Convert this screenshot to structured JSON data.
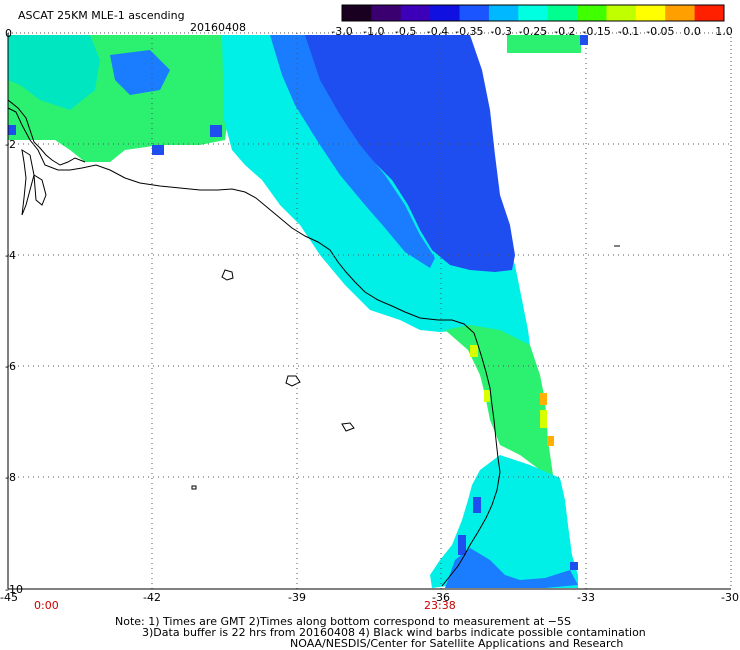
{
  "header": {
    "title": "ASCAT 25KM MLE-1 ascending",
    "date": "20160408"
  },
  "colorbar": {
    "labels": [
      "-3.0",
      "-1.0",
      "-0.5",
      "-0.4",
      "-0.35",
      "-0.3",
      "-0.25",
      "-0.2",
      "-0.15",
      "-0.1",
      "-0.05",
      "0.0",
      "1.0"
    ],
    "colors": [
      "#1a0020",
      "#3a0070",
      "#3b00b8",
      "#1010e0",
      "#1a55ff",
      "#00b8ff",
      "#00ffe0",
      "#00ff90",
      "#40ff00",
      "#c0ff00",
      "#ffff00",
      "#ffa000",
      "#ff2000"
    ]
  },
  "map": {
    "lon_labels": [
      "-45",
      "-42",
      "-39",
      "-36",
      "-33",
      "-30"
    ],
    "lat_labels": [
      "0",
      "-2",
      "-4",
      "-6",
      "-8",
      "-10"
    ],
    "time_start": "0:00",
    "time_end": "23:38",
    "palette": {
      "ocean_green": "#2cf070",
      "ocean_cyan": "#00f0e8",
      "ocean_teal": "#00e6c0",
      "ocean_blue": "#1a7dff",
      "ocean_deep_blue": "#1f4ef0",
      "ocean_yellow": "#d8ff00",
      "ocean_orange": "#ffb000"
    }
  },
  "notes": {
    "line1": "Note: 1) Times are GMT 2)Times along bottom correspond to measurement at −5S",
    "line2": "3)Data buffer is 22 hrs from 20160408 4) Black wind barbs indicate possible contamination",
    "line3": "NOAA/NESDIS/Center for Satellite Applications and Research"
  }
}
